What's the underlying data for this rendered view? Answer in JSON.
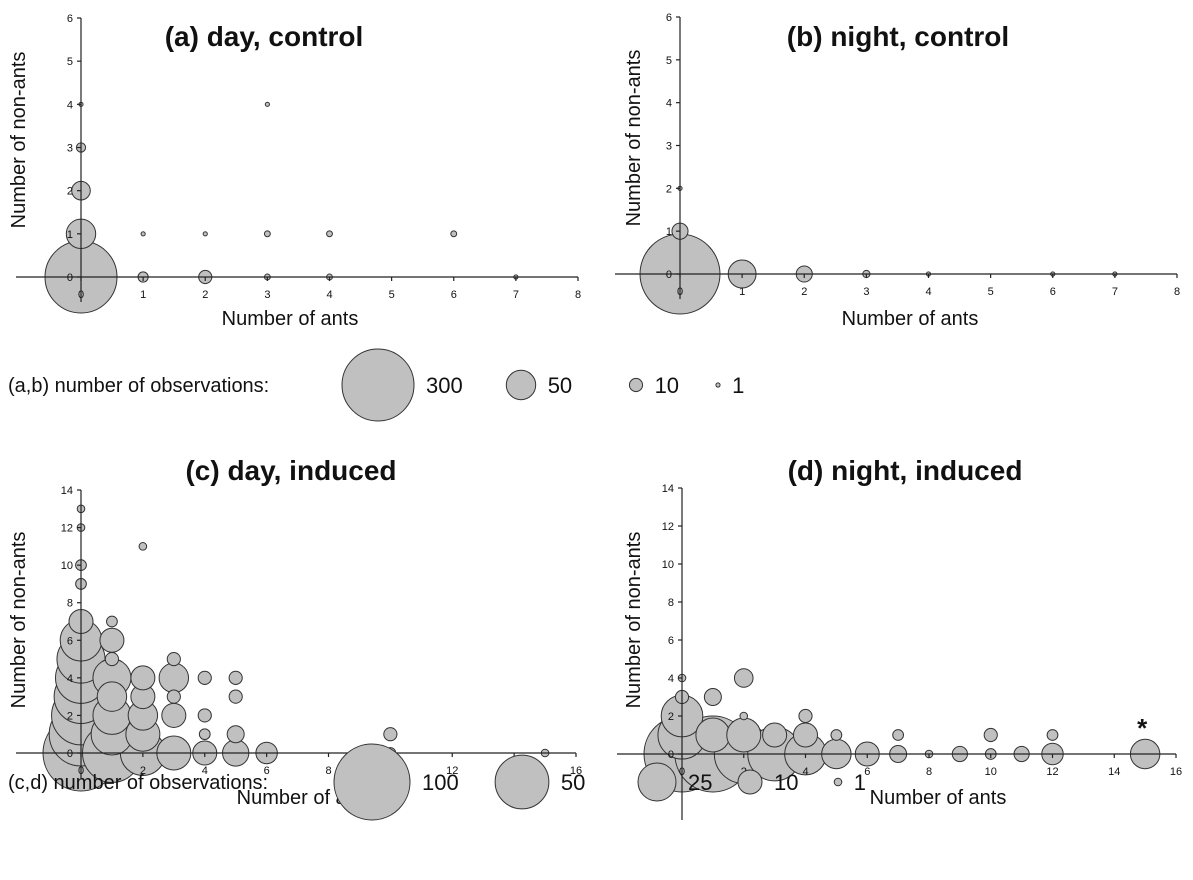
{
  "colors": {
    "bubble_fill": "#c0c0c0",
    "bubble_stroke": "#333333",
    "axis": "#222222"
  },
  "chart_data": [
    {
      "type": "scatter",
      "title": "(a) day, control",
      "xlabel": "Number of ants",
      "ylabel": "Number of non-ants",
      "xlim": [
        0,
        8
      ],
      "ylim": [
        0,
        6
      ],
      "xticks": [
        0,
        1,
        2,
        3,
        4,
        5,
        6,
        7,
        8
      ],
      "yticks": [
        0,
        1,
        2,
        3,
        4,
        5,
        6
      ],
      "size_legend_ref": "ab",
      "points": [
        {
          "x": 0,
          "y": 0,
          "n": 300
        },
        {
          "x": 0,
          "y": 1,
          "n": 50
        },
        {
          "x": 0,
          "y": 2,
          "n": 20
        },
        {
          "x": 0,
          "y": 3,
          "n": 5
        },
        {
          "x": 0,
          "y": 4,
          "n": 1
        },
        {
          "x": 1,
          "y": 0,
          "n": 6
        },
        {
          "x": 1,
          "y": 1,
          "n": 1
        },
        {
          "x": 2,
          "y": 0,
          "n": 10
        },
        {
          "x": 2,
          "y": 1,
          "n": 1
        },
        {
          "x": 3,
          "y": 0,
          "n": 2
        },
        {
          "x": 3,
          "y": 1,
          "n": 2
        },
        {
          "x": 3,
          "y": 4,
          "n": 1
        },
        {
          "x": 4,
          "y": 0,
          "n": 2
        },
        {
          "x": 4,
          "y": 1,
          "n": 2
        },
        {
          "x": 6,
          "y": 1,
          "n": 2
        },
        {
          "x": 7,
          "y": 0,
          "n": 1
        }
      ]
    },
    {
      "type": "scatter",
      "title": "(b) night, control",
      "xlabel": "Number of ants",
      "ylabel": "Number of non-ants",
      "xlim": [
        0,
        8
      ],
      "ylim": [
        0,
        6
      ],
      "xticks": [
        0,
        1,
        2,
        3,
        4,
        5,
        6,
        7,
        8
      ],
      "yticks": [
        0,
        1,
        2,
        3,
        4,
        5,
        6
      ],
      "size_legend_ref": "ab",
      "points": [
        {
          "x": 0,
          "y": 0,
          "n": 370
        },
        {
          "x": 0,
          "y": 1,
          "n": 15
        },
        {
          "x": 0,
          "y": 2,
          "n": 1
        },
        {
          "x": 1,
          "y": 0,
          "n": 45
        },
        {
          "x": 2,
          "y": 0,
          "n": 15
        },
        {
          "x": 3,
          "y": 0,
          "n": 3
        },
        {
          "x": 4,
          "y": 0,
          "n": 1
        },
        {
          "x": 6,
          "y": 0,
          "n": 1
        },
        {
          "x": 7,
          "y": 0,
          "n": 1
        }
      ]
    },
    {
      "type": "scatter",
      "title": "(c) day, induced",
      "xlabel": "Number of ants",
      "ylabel": "Number of non-ants",
      "xlim": [
        0,
        16
      ],
      "ylim": [
        0,
        14
      ],
      "xticks": [
        0,
        2,
        4,
        6,
        8,
        10,
        12,
        14,
        16
      ],
      "yticks": [
        0,
        2,
        4,
        6,
        8,
        10,
        12,
        14
      ],
      "size_legend_ref": "cd",
      "points": [
        {
          "x": 0,
          "y": 0,
          "n": 100
        },
        {
          "x": 0,
          "y": 1,
          "n": 70
        },
        {
          "x": 0,
          "y": 2,
          "n": 60
        },
        {
          "x": 0,
          "y": 3,
          "n": 50
        },
        {
          "x": 0,
          "y": 4,
          "n": 45
        },
        {
          "x": 0,
          "y": 5,
          "n": 40
        },
        {
          "x": 0,
          "y": 6,
          "n": 30
        },
        {
          "x": 0,
          "y": 7,
          "n": 10
        },
        {
          "x": 0,
          "y": 9,
          "n": 2
        },
        {
          "x": 0,
          "y": 10,
          "n": 2
        },
        {
          "x": 0,
          "y": 12,
          "n": 1
        },
        {
          "x": 0,
          "y": 13,
          "n": 1
        },
        {
          "x": 1,
          "y": 0,
          "n": 60
        },
        {
          "x": 1,
          "y": 1,
          "n": 30
        },
        {
          "x": 1,
          "y": 2,
          "n": 25
        },
        {
          "x": 1,
          "y": 3,
          "n": 15
        },
        {
          "x": 1,
          "y": 4,
          "n": 25
        },
        {
          "x": 1,
          "y": 5,
          "n": 3
        },
        {
          "x": 1,
          "y": 6,
          "n": 10
        },
        {
          "x": 1,
          "y": 7,
          "n": 2
        },
        {
          "x": 2,
          "y": 0,
          "n": 35
        },
        {
          "x": 2,
          "y": 1,
          "n": 20
        },
        {
          "x": 2,
          "y": 2,
          "n": 15
        },
        {
          "x": 2,
          "y": 3,
          "n": 10
        },
        {
          "x": 2,
          "y": 4,
          "n": 10
        },
        {
          "x": 2,
          "y": 11,
          "n": 1
        },
        {
          "x": 3,
          "y": 0,
          "n": 20
        },
        {
          "x": 3,
          "y": 2,
          "n": 10
        },
        {
          "x": 3,
          "y": 3,
          "n": 3
        },
        {
          "x": 3,
          "y": 4,
          "n": 15
        },
        {
          "x": 3,
          "y": 5,
          "n": 3
        },
        {
          "x": 4,
          "y": 0,
          "n": 10
        },
        {
          "x": 4,
          "y": 1,
          "n": 2
        },
        {
          "x": 4,
          "y": 2,
          "n": 3
        },
        {
          "x": 4,
          "y": 4,
          "n": 3
        },
        {
          "x": 5,
          "y": 0,
          "n": 12
        },
        {
          "x": 5,
          "y": 1,
          "n": 5
        },
        {
          "x": 5,
          "y": 3,
          "n": 3
        },
        {
          "x": 5,
          "y": 4,
          "n": 3
        },
        {
          "x": 6,
          "y": 0,
          "n": 8
        },
        {
          "x": 9.3,
          "y": 0,
          "n": 2
        },
        {
          "x": 10,
          "y": 0,
          "n": 2
        },
        {
          "x": 10,
          "y": 1,
          "n": 3
        },
        {
          "x": 15,
          "y": 0,
          "n": 1
        }
      ]
    },
    {
      "type": "scatter",
      "title": "(d) night, induced",
      "xlabel": "Number of ants",
      "ylabel": "Number of non-ants",
      "xlim": [
        0,
        16
      ],
      "ylim": [
        0,
        14
      ],
      "xticks": [
        0,
        2,
        4,
        6,
        8,
        10,
        12,
        14,
        16
      ],
      "yticks": [
        0,
        2,
        4,
        6,
        8,
        10,
        12,
        14
      ],
      "size_legend_ref": "cd",
      "annotation": "*",
      "points": [
        {
          "x": 0,
          "y": 0,
          "n": 100
        },
        {
          "x": 0,
          "y": 1,
          "n": 40
        },
        {
          "x": 0,
          "y": 2,
          "n": 30
        },
        {
          "x": 0,
          "y": 3,
          "n": 3
        },
        {
          "x": 0,
          "y": 4,
          "n": 1
        },
        {
          "x": 1,
          "y": 0,
          "n": 100
        },
        {
          "x": 1,
          "y": 1,
          "n": 20
        },
        {
          "x": 1,
          "y": 3,
          "n": 5
        },
        {
          "x": 2,
          "y": 0,
          "n": 60
        },
        {
          "x": 2,
          "y": 1,
          "n": 20
        },
        {
          "x": 2,
          "y": 2,
          "n": 1
        },
        {
          "x": 2,
          "y": 4,
          "n": 6
        },
        {
          "x": 3,
          "y": 0,
          "n": 50
        },
        {
          "x": 3,
          "y": 1,
          "n": 10
        },
        {
          "x": 4,
          "y": 0,
          "n": 30
        },
        {
          "x": 4,
          "y": 1,
          "n": 10
        },
        {
          "x": 4,
          "y": 2,
          "n": 3
        },
        {
          "x": 5,
          "y": 0,
          "n": 15
        },
        {
          "x": 5,
          "y": 1,
          "n": 2
        },
        {
          "x": 6,
          "y": 0,
          "n": 10
        },
        {
          "x": 7,
          "y": 0,
          "n": 5
        },
        {
          "x": 7,
          "y": 1,
          "n": 2
        },
        {
          "x": 8,
          "y": 0,
          "n": 1
        },
        {
          "x": 9,
          "y": 0,
          "n": 4
        },
        {
          "x": 10,
          "y": 0,
          "n": 2
        },
        {
          "x": 10,
          "y": 1,
          "n": 3
        },
        {
          "x": 11,
          "y": 0,
          "n": 4
        },
        {
          "x": 12,
          "y": 0,
          "n": 8
        },
        {
          "x": 12,
          "y": 1,
          "n": 2
        },
        {
          "x": 15,
          "y": 0,
          "n": 15
        }
      ]
    }
  ],
  "size_legends": {
    "ab": {
      "label": "(a,b) number of observations:",
      "entries": [
        300,
        50,
        10,
        1
      ]
    },
    "cd": {
      "label": "(c,d) number of observations:",
      "entries": [
        100,
        50,
        25,
        10,
        1
      ]
    }
  }
}
